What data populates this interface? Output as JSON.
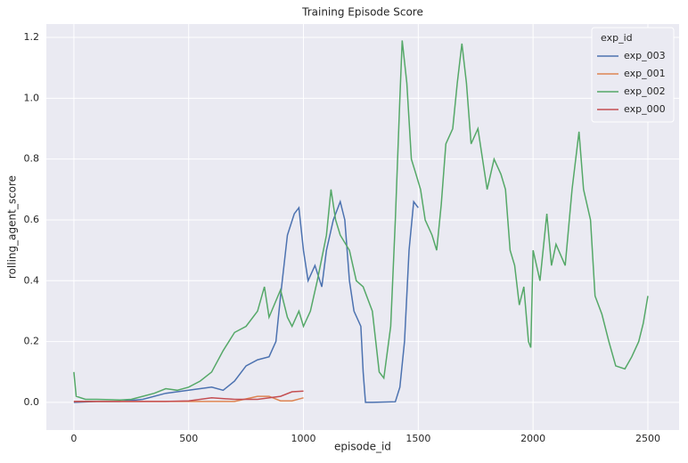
{
  "chart_data": {
    "type": "line",
    "title": "Training Episode Score",
    "x_label": "episode_id",
    "y_label": "rolling_agent_score",
    "legend_title": "exp_id",
    "legend": "upper right",
    "grid": true,
    "xlim": [
      -120,
      2636
    ],
    "ylim": [
      -0.091,
      1.244
    ],
    "xticks": [
      0,
      500,
      1000,
      1500,
      2000,
      2500
    ],
    "yticks": [
      {
        "value": 0,
        "label": "0.0"
      },
      0.2,
      0.4,
      0.6,
      0.8,
      {
        "value": 1,
        "label": "1.0"
      },
      1.2
    ],
    "series": [
      {
        "name": "exp_003",
        "color": "#4c72b0",
        "x": [
          0,
          100,
          200,
          300,
          400,
          450,
          500,
          550,
          600,
          650,
          700,
          750,
          800,
          850,
          880,
          900,
          930,
          960,
          980,
          1000,
          1020,
          1050,
          1080,
          1100,
          1130,
          1160,
          1180,
          1200,
          1220,
          1250,
          1260,
          1270,
          1300,
          1400,
          1420,
          1440,
          1460,
          1480,
          1500
        ],
        "values": [
          0,
          0.003,
          0.003,
          0.01,
          0.03,
          0.035,
          0.04,
          0.045,
          0.05,
          0.04,
          0.07,
          0.12,
          0.14,
          0.15,
          0.2,
          0.35,
          0.55,
          0.62,
          0.64,
          0.5,
          0.4,
          0.45,
          0.38,
          0.5,
          0.6,
          0.66,
          0.6,
          0.4,
          0.3,
          0.25,
          0.1,
          0,
          0,
          0.002,
          0.05,
          0.2,
          0.5,
          0.66,
          0.64
        ]
      },
      {
        "name": "exp_001",
        "color": "#dd8452",
        "x": [
          0,
          200,
          400,
          600,
          700,
          800,
          850,
          900,
          950,
          1000
        ],
        "values": [
          0.003,
          0.003,
          0.003,
          0.003,
          0.003,
          0.02,
          0.02,
          0.005,
          0.005,
          0.015
        ]
      },
      {
        "name": "exp_002",
        "color": "#55a868",
        "x": [
          0,
          10,
          50,
          100,
          200,
          250,
          300,
          350,
          400,
          450,
          500,
          550,
          600,
          650,
          700,
          750,
          800,
          830,
          850,
          900,
          930,
          950,
          980,
          1000,
          1030,
          1060,
          1100,
          1120,
          1140,
          1160,
          1200,
          1230,
          1260,
          1300,
          1330,
          1350,
          1380,
          1400,
          1420,
          1430,
          1450,
          1470,
          1490,
          1510,
          1530,
          1560,
          1580,
          1600,
          1620,
          1650,
          1670,
          1690,
          1710,
          1730,
          1760,
          1800,
          1830,
          1860,
          1880,
          1900,
          1920,
          1940,
          1960,
          1980,
          1990,
          2000,
          2030,
          2060,
          2080,
          2100,
          2140,
          2170,
          2200,
          2220,
          2250,
          2270,
          2300,
          2330,
          2360,
          2400,
          2430,
          2460,
          2480,
          2500
        ],
        "values": [
          0.1,
          0.02,
          0.01,
          0.01,
          0.008,
          0.01,
          0.02,
          0.03,
          0.045,
          0.04,
          0.05,
          0.07,
          0.1,
          0.17,
          0.23,
          0.25,
          0.3,
          0.38,
          0.28,
          0.37,
          0.28,
          0.25,
          0.3,
          0.25,
          0.3,
          0.4,
          0.55,
          0.7,
          0.6,
          0.55,
          0.5,
          0.4,
          0.38,
          0.3,
          0.1,
          0.08,
          0.25,
          0.6,
          1.0,
          1.19,
          1.05,
          0.8,
          0.75,
          0.7,
          0.6,
          0.55,
          0.5,
          0.65,
          0.85,
          0.9,
          1.05,
          1.18,
          1.05,
          0.85,
          0.9,
          0.7,
          0.8,
          0.75,
          0.7,
          0.5,
          0.45,
          0.32,
          0.38,
          0.2,
          0.18,
          0.5,
          0.4,
          0.62,
          0.45,
          0.52,
          0.45,
          0.7,
          0.89,
          0.7,
          0.6,
          0.35,
          0.29,
          0.2,
          0.12,
          0.11,
          0.15,
          0.2,
          0.26,
          0.35
        ]
      },
      {
        "name": "exp_000",
        "color": "#c44e52",
        "x": [
          0,
          200,
          400,
          500,
          600,
          700,
          800,
          900,
          950,
          1000
        ],
        "values": [
          0.003,
          0.003,
          0.003,
          0.005,
          0.015,
          0.01,
          0.01,
          0.02,
          0.035,
          0.037
        ]
      }
    ]
  }
}
